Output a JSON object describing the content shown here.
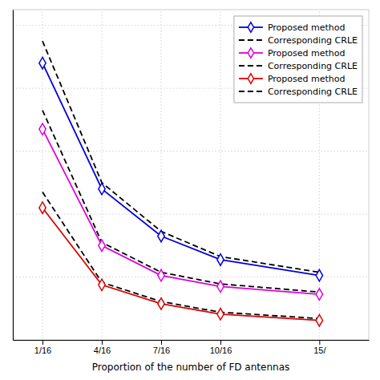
{
  "chart_data": {
    "type": "line",
    "xlabel": "Proportion of the number of FD antennas",
    "x": [
      1,
      4,
      7,
      10,
      15
    ],
    "xlim": [
      -0.5,
      17.5
    ],
    "xticks": [
      {
        "value": 1,
        "label": "1/16"
      },
      {
        "value": 4,
        "label": "4/16"
      },
      {
        "value": 7,
        "label": "7/16"
      },
      {
        "value": 10,
        "label": "10/16"
      },
      {
        "value": 15,
        "label": "15/"
      }
    ],
    "ylim": [
      0.0,
      1.05
    ],
    "yticks": [
      0,
      0.2,
      0.4,
      0.6,
      0.8,
      1.0
    ],
    "tick_labels": "x",
    "grid": true,
    "legend": "upper right",
    "series": [
      {
        "name": "Proposed method",
        "color": "#0000dd",
        "marker": "diamond",
        "line_style": "solid",
        "values": [
          0.88,
          0.48,
          0.33,
          0.255,
          0.205
        ]
      },
      {
        "name": "Corresponding CRLE",
        "color": "#000000",
        "line_style": "dashed",
        "values": [
          0.95,
          0.5,
          0.345,
          0.265,
          0.215
        ]
      },
      {
        "name": "Proposed method",
        "color": "#dd00dd",
        "marker": "diamond",
        "line_style": "solid",
        "values": [
          0.67,
          0.3,
          0.205,
          0.17,
          0.145
        ]
      },
      {
        "name": "Corresponding CRLE",
        "color": "#000000",
        "line_style": "dashed",
        "values": [
          0.73,
          0.31,
          0.215,
          0.178,
          0.152
        ]
      },
      {
        "name": "Proposed method",
        "color": "#dd0000",
        "marker": "diamond",
        "line_style": "solid",
        "values": [
          0.42,
          0.175,
          0.115,
          0.082,
          0.062
        ]
      },
      {
        "name": "Corresponding CRLE",
        "color": "#000000",
        "line_style": "dashed",
        "values": [
          0.47,
          0.183,
          0.122,
          0.088,
          0.068
        ]
      }
    ]
  }
}
